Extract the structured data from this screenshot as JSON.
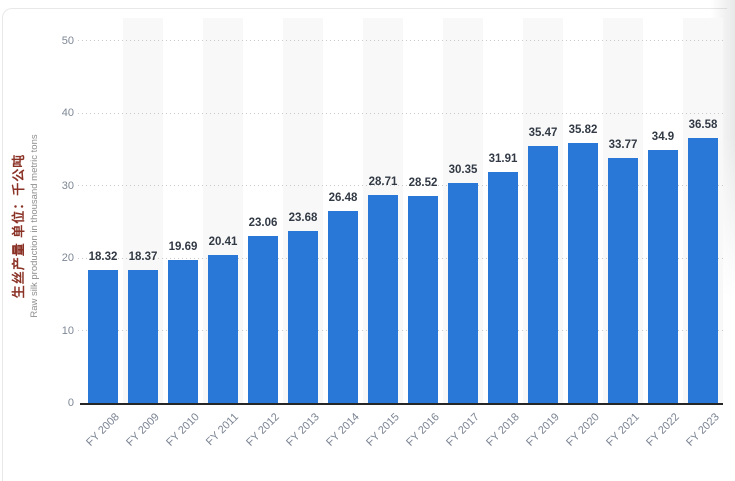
{
  "chart_data": {
    "type": "bar",
    "title": "",
    "categories": [
      "FY 2008",
      "FY 2009",
      "FY 2010",
      "FY 2011",
      "FY 2012",
      "FY 2013",
      "FY 2014",
      "FY 2015",
      "FY 2016",
      "FY 2017",
      "FY 2018",
      "FY 2019",
      "FY 2020",
      "FY 2021",
      "FY 2022",
      "FY 2023"
    ],
    "values": [
      18.32,
      18.37,
      19.69,
      20.41,
      23.06,
      23.68,
      26.48,
      28.71,
      28.52,
      30.35,
      31.91,
      35.47,
      35.82,
      33.77,
      34.9,
      36.58
    ],
    "value_labels": [
      "18.32",
      "18.37",
      "19.69",
      "20.41",
      "23.06",
      "23.68",
      "26.48",
      "28.71",
      "28.52",
      "30.35",
      "31.91",
      "35.47",
      "35.82",
      "33.77",
      "34.9",
      "36.58"
    ],
    "xlabel": "",
    "ylabel_zh": "生丝产量  单位：千公吨",
    "ylabel_en": "Raw silk production in thousand metric tons",
    "ylim": [
      0,
      50
    ],
    "yticks": [
      0,
      10,
      20,
      30,
      40,
      50
    ],
    "ytick_labels": [
      "0",
      "10",
      "20",
      "30",
      "40",
      "50"
    ],
    "grid": "horizontal-dotted",
    "legend": "none",
    "plot_bands": "alternating-columns",
    "colors": {
      "bar": "#2978d8",
      "value_label": "#323a45",
      "x_label": "#7b8493",
      "y_tick_label": "#7e8896",
      "axis_line": "#262626",
      "gridline": "#c9c9c9",
      "plot_band": "#f8f8f8",
      "ylabel_zh_color": "#8b3226",
      "ylabel_en_color": "#8d8d8d"
    }
  }
}
